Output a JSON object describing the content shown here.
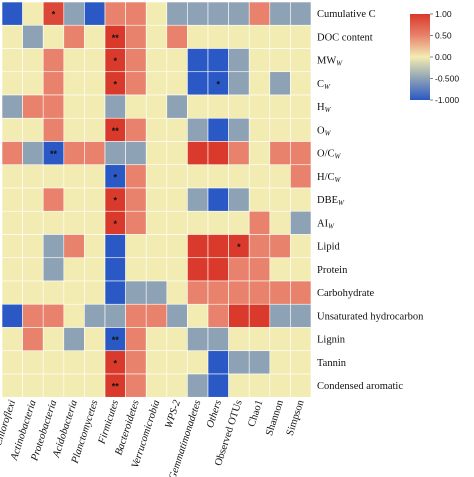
{
  "chart_data": {
    "type": "heatmap",
    "rows": [
      {
        "label": "Cumulative C",
        "sub": ""
      },
      {
        "label": "DOC content",
        "sub": ""
      },
      {
        "label": "MW",
        "sub": "W"
      },
      {
        "label": "C",
        "sub": "W"
      },
      {
        "label": "H",
        "sub": "W"
      },
      {
        "label": "O",
        "sub": "W"
      },
      {
        "label": "O/C",
        "sub": "W"
      },
      {
        "label": "H/C",
        "sub": "W"
      },
      {
        "label": "DBE",
        "sub": "W"
      },
      {
        "label": "AI",
        "sub": "W"
      },
      {
        "label": "Lipid",
        "sub": ""
      },
      {
        "label": "Protein",
        "sub": ""
      },
      {
        "label": "Carbohydrate",
        "sub": ""
      },
      {
        "label": "Unsaturated hydrocarbon",
        "sub": ""
      },
      {
        "label": "Lignin",
        "sub": ""
      },
      {
        "label": "Tannin",
        "sub": ""
      },
      {
        "label": "Condensed aromatic",
        "sub": ""
      }
    ],
    "columns": [
      {
        "label": "Chloroflexi",
        "italic": true
      },
      {
        "label": "Actinobacteria",
        "italic": true
      },
      {
        "label": "Proteobacteria",
        "italic": true
      },
      {
        "label": "Acidobacteria",
        "italic": true
      },
      {
        "label": "Planctomycetes",
        "italic": true
      },
      {
        "label": "Firmicutes",
        "italic": true
      },
      {
        "label": "Bacteroidetes",
        "italic": true
      },
      {
        "label": "Verrucomicrobia",
        "italic": true
      },
      {
        "label": "WPS-2",
        "italic": true
      },
      {
        "label": "Gemmatimonadetes",
        "italic": true
      },
      {
        "label": "Others",
        "italic": true
      },
      {
        "label": "Observed OTUs",
        "italic": false
      },
      {
        "label": "Chao1",
        "italic": false
      },
      {
        "label": "Shannon",
        "italic": false
      },
      {
        "label": "Simpson",
        "italic": false
      }
    ],
    "values": [
      [
        -1.0,
        0.0,
        0.9,
        -0.5,
        -1.0,
        0.5,
        0.5,
        0.0,
        -0.5,
        -0.5,
        -0.5,
        -0.5,
        0.5,
        -0.5,
        -0.5
      ],
      [
        0.0,
        -0.5,
        0.0,
        0.5,
        0.0,
        1.0,
        0.5,
        0.0,
        0.5,
        0.0,
        0.0,
        0.0,
        0.0,
        0.0,
        0.0
      ],
      [
        0.0,
        0.0,
        0.5,
        0.0,
        0.0,
        1.0,
        0.5,
        0.0,
        0.0,
        -1.0,
        -1.0,
        -0.5,
        0.0,
        0.0,
        0.0
      ],
      [
        0.0,
        0.0,
        0.5,
        0.0,
        0.0,
        1.0,
        0.5,
        0.0,
        0.0,
        -1.0,
        -1.0,
        -0.5,
        0.0,
        -0.5,
        0.0
      ],
      [
        -0.5,
        0.5,
        0.5,
        0.0,
        0.0,
        -0.5,
        0.0,
        0.0,
        -0.5,
        0.0,
        0.0,
        0.0,
        0.0,
        0.0,
        0.0
      ],
      [
        0.0,
        0.0,
        0.5,
        0.0,
        0.0,
        1.0,
        0.5,
        0.0,
        0.0,
        -0.5,
        -1.0,
        -0.5,
        0.0,
        0.0,
        0.0
      ],
      [
        0.5,
        -0.5,
        -1.0,
        0.5,
        0.5,
        -0.5,
        -0.5,
        0.0,
        0.0,
        1.0,
        1.0,
        0.5,
        0.0,
        0.5,
        0.5
      ],
      [
        0.0,
        0.0,
        0.0,
        0.0,
        0.0,
        -1.0,
        0.5,
        0.0,
        0.0,
        0.0,
        0.0,
        0.0,
        0.0,
        0.0,
        0.5
      ],
      [
        0.0,
        0.0,
        0.5,
        0.0,
        0.0,
        1.0,
        0.5,
        0.0,
        0.0,
        -0.5,
        -1.0,
        -0.5,
        0.0,
        0.0,
        0.0
      ],
      [
        0.0,
        0.0,
        0.0,
        0.0,
        0.0,
        1.0,
        0.5,
        0.0,
        0.0,
        0.0,
        0.0,
        0.0,
        0.5,
        0.0,
        -0.5
      ],
      [
        0.0,
        0.0,
        -0.5,
        0.5,
        0.0,
        -1.0,
        0.0,
        0.0,
        0.0,
        1.0,
        1.0,
        1.0,
        0.5,
        0.5,
        0.0
      ],
      [
        0.0,
        0.0,
        -0.5,
        0.0,
        0.0,
        -1.0,
        0.0,
        0.0,
        0.0,
        1.0,
        1.0,
        0.5,
        0.5,
        0.0,
        0.0
      ],
      [
        0.0,
        0.0,
        0.0,
        0.0,
        0.0,
        -1.0,
        -0.5,
        -0.5,
        0.0,
        0.5,
        0.5,
        0.5,
        0.5,
        0.5,
        0.5
      ],
      [
        -1.0,
        0.5,
        0.5,
        0.0,
        -0.5,
        -0.5,
        0.5,
        0.5,
        -0.5,
        0.0,
        0.5,
        1.0,
        1.0,
        -0.5,
        -0.5
      ],
      [
        0.0,
        0.5,
        0.0,
        -0.5,
        0.0,
        -1.0,
        0.5,
        0.0,
        0.0,
        -0.5,
        -0.5,
        0.0,
        0.0,
        0.0,
        0.0
      ],
      [
        0.0,
        0.0,
        0.0,
        0.0,
        0.0,
        1.0,
        0.5,
        0.0,
        0.0,
        0.0,
        -1.0,
        -0.5,
        -0.5,
        0.0,
        0.0
      ],
      [
        0.0,
        0.0,
        0.0,
        0.0,
        0.0,
        1.0,
        0.5,
        0.0,
        0.0,
        -0.5,
        -1.0,
        0.0,
        0.0,
        0.0,
        0.0
      ]
    ],
    "significance": [
      {
        "row": 0,
        "col": 2,
        "mark": "*"
      },
      {
        "row": 1,
        "col": 5,
        "mark": "**"
      },
      {
        "row": 2,
        "col": 5,
        "mark": "*"
      },
      {
        "row": 3,
        "col": 5,
        "mark": "*"
      },
      {
        "row": 3,
        "col": 10,
        "mark": "*"
      },
      {
        "row": 5,
        "col": 5,
        "mark": "**"
      },
      {
        "row": 6,
        "col": 2,
        "mark": "**"
      },
      {
        "row": 7,
        "col": 5,
        "mark": "*"
      },
      {
        "row": 8,
        "col": 5,
        "mark": "*"
      },
      {
        "row": 9,
        "col": 5,
        "mark": "*"
      },
      {
        "row": 10,
        "col": 11,
        "mark": "*"
      },
      {
        "row": 14,
        "col": 5,
        "mark": "**"
      },
      {
        "row": 15,
        "col": 5,
        "mark": "*"
      },
      {
        "row": 16,
        "col": 5,
        "mark": "**"
      }
    ],
    "color_scale": {
      "min": -1.0,
      "max": 1.0,
      "ticks": [
        "1.00",
        "0.50",
        "0.00",
        "-0.500",
        "-1.000"
      ],
      "colors": [
        "#d93a2b",
        "#e8826c",
        "#f2ecb2",
        "#8ea2b6",
        "#2a58c4"
      ]
    },
    "legend_position": "top-right",
    "grid": true
  }
}
